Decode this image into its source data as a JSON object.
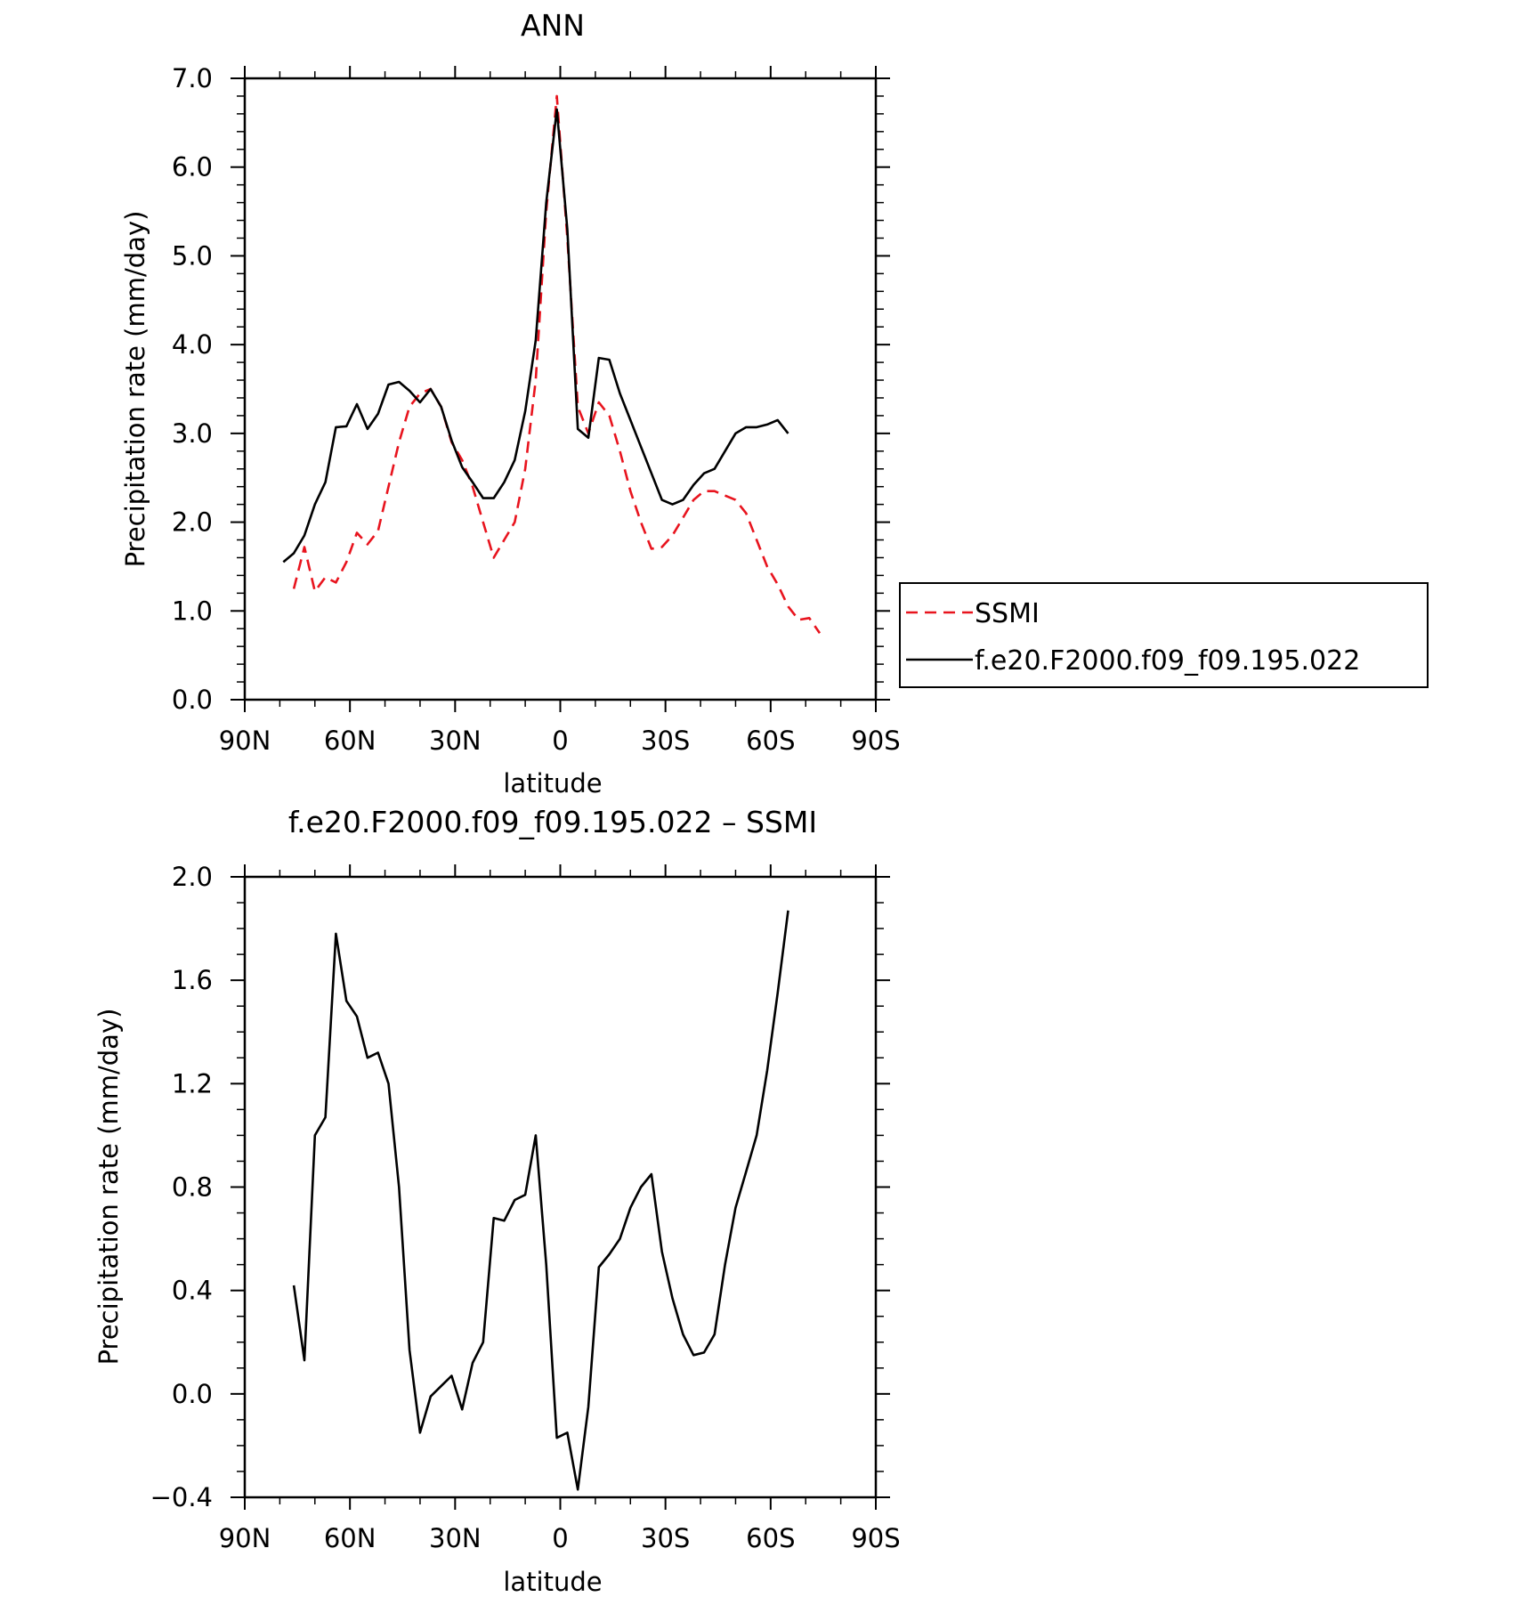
{
  "chart_data": [
    {
      "type": "line",
      "title": "ANN",
      "xlabel": "latitude",
      "ylabel": "Precipitation rate (mm/day)",
      "xlim": [
        90,
        -90
      ],
      "ylim": [
        0,
        7
      ],
      "xticks": [
        90,
        60,
        30,
        0,
        -30,
        -60,
        -90
      ],
      "xtick_labels": [
        "90N",
        "60N",
        "30N",
        "0",
        "30S",
        "60S",
        "90S"
      ],
      "yticks": [
        0,
        1,
        2,
        3,
        4,
        5,
        6,
        7
      ],
      "ytick_labels": [
        "0.0",
        "1.0",
        "2.0",
        "3.0",
        "4.0",
        "5.0",
        "6.0",
        "7.0"
      ],
      "legend_position": "right",
      "series": [
        {
          "name": "SSMI",
          "color": "#e8141e",
          "dash": "dashed",
          "x": [
            76,
            73,
            70,
            67,
            64,
            61,
            58,
            55,
            52,
            49,
            46,
            43,
            40,
            37,
            34,
            31,
            28,
            25,
            22,
            19,
            16,
            13,
            10,
            7,
            4,
            1,
            -2,
            -5,
            -8,
            -11,
            -14,
            -17,
            -20,
            -23,
            -26,
            -29,
            -32,
            -35,
            -38,
            -41,
            -44,
            -47,
            -50,
            -53,
            -56,
            -59,
            -62,
            -65,
            -68,
            -71,
            -74
          ],
          "y": [
            1.25,
            1.72,
            1.22,
            1.38,
            1.32,
            1.55,
            1.88,
            1.75,
            1.9,
            2.4,
            2.9,
            3.3,
            3.45,
            3.5,
            3.3,
            2.9,
            2.7,
            2.4,
            2.0,
            1.6,
            1.8,
            2.0,
            2.6,
            3.6,
            5.5,
            6.8,
            5.2,
            3.3,
            3.0,
            3.35,
            3.2,
            2.8,
            2.35,
            2.0,
            1.7,
            1.72,
            1.85,
            2.05,
            2.25,
            2.35,
            2.35,
            2.3,
            2.25,
            2.1,
            1.8,
            1.5,
            1.3,
            1.05,
            0.9,
            0.92,
            0.75
          ]
        },
        {
          "name": "f.e20.F2000.f09_f09.195.022",
          "color": "#000000",
          "dash": "solid",
          "x": [
            79,
            76,
            73,
            70,
            67,
            64,
            61,
            58,
            55,
            52,
            49,
            46,
            43,
            40,
            37,
            34,
            31,
            28,
            25,
            22,
            19,
            16,
            13,
            10,
            7,
            4,
            1,
            -2,
            -5,
            -8,
            -11,
            -14,
            -17,
            -20,
            -23,
            -26,
            -29,
            -32,
            -35,
            -38,
            -41,
            -44,
            -47,
            -50,
            -53,
            -56,
            -59,
            -62,
            -65
          ],
          "y": [
            1.55,
            1.65,
            1.85,
            2.2,
            2.45,
            3.07,
            3.08,
            3.33,
            3.05,
            3.22,
            3.55,
            3.58,
            3.48,
            3.35,
            3.5,
            3.3,
            2.92,
            2.62,
            2.45,
            2.27,
            2.27,
            2.45,
            2.7,
            3.25,
            4.05,
            5.6,
            6.65,
            5.3,
            3.05,
            2.95,
            3.85,
            3.83,
            3.45,
            3.15,
            2.85,
            2.55,
            2.25,
            2.2,
            2.25,
            2.42,
            2.55,
            2.6,
            2.8,
            3.0,
            3.07,
            3.07,
            3.1,
            3.15,
            3.0
          ]
        }
      ]
    },
    {
      "type": "line",
      "title": "f.e20.F2000.f09_f09.195.022 – SSMI",
      "xlabel": "latitude",
      "ylabel": "Precipitation rate (mm/day)",
      "xlim": [
        90,
        -90
      ],
      "ylim": [
        -0.4,
        2.0
      ],
      "xticks": [
        90,
        60,
        30,
        0,
        -30,
        -60,
        -90
      ],
      "xtick_labels": [
        "90N",
        "60N",
        "30N",
        "0",
        "30S",
        "60S",
        "90S"
      ],
      "yticks": [
        -0.4,
        0.0,
        0.4,
        0.8,
        1.2,
        1.6,
        2.0
      ],
      "ytick_labels": [
        "−0.4",
        "0.0",
        "0.4",
        "0.8",
        "1.2",
        "1.6",
        "2.0"
      ],
      "series": [
        {
          "color": "#000000",
          "dash": "solid",
          "x": [
            76,
            73,
            70,
            67,
            64,
            61,
            58,
            55,
            52,
            49,
            46,
            43,
            40,
            37,
            34,
            31,
            28,
            25,
            22,
            19,
            16,
            13,
            10,
            7,
            4,
            1,
            -2,
            -5,
            -8,
            -11,
            -14,
            -17,
            -20,
            -23,
            -26,
            -29,
            -32,
            -35,
            -38,
            -41,
            -44,
            -47,
            -50,
            -53,
            -56,
            -59,
            -62,
            -65
          ],
          "y": [
            0.42,
            0.13,
            1.0,
            1.07,
            1.78,
            1.52,
            1.46,
            1.3,
            1.32,
            1.2,
            0.8,
            0.17,
            -0.15,
            -0.01,
            0.03,
            0.07,
            -0.06,
            0.12,
            0.2,
            0.68,
            0.67,
            0.75,
            0.77,
            1.0,
            0.5,
            -0.17,
            -0.15,
            -0.37,
            -0.05,
            0.49,
            0.54,
            0.6,
            0.72,
            0.8,
            0.85,
            0.55,
            0.37,
            0.23,
            0.15,
            0.16,
            0.23,
            0.5,
            0.72,
            0.86,
            1.0,
            1.25,
            1.55,
            1.87
          ]
        }
      ]
    }
  ]
}
